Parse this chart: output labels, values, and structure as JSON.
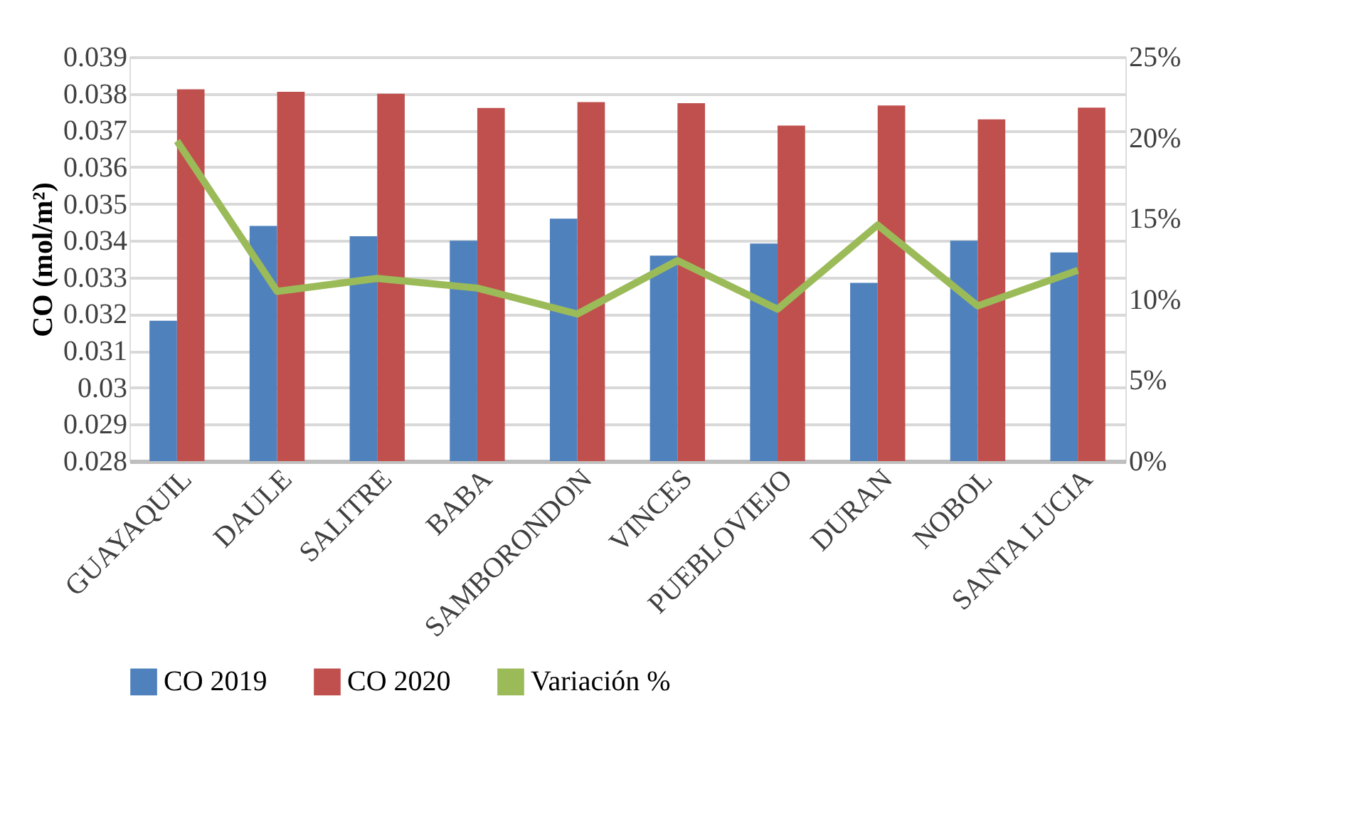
{
  "chart_data": {
    "type": "bar",
    "ylabel": "CO (mol/m²)",
    "categories": [
      "GUAYAQUIL",
      "DAULE",
      "SALITRE",
      "BABA",
      "SAMBORONDON",
      "VINCES",
      "PUEBLOVIEJO",
      "DURAN",
      "NOBOL",
      "SANTA LUCIA"
    ],
    "series": [
      {
        "name": "CO 2019",
        "color": "#4f81bd",
        "values": [
          0.03182,
          0.0344,
          0.03412,
          0.034,
          0.0346,
          0.03359,
          0.03392,
          0.03285,
          0.034,
          0.03368
        ]
      },
      {
        "name": "CO 2020",
        "color": "#c0504d",
        "values": [
          0.03812,
          0.03805,
          0.038,
          0.03761,
          0.03777,
          0.03774,
          0.03713,
          0.03768,
          0.0373,
          0.03762
        ]
      },
      {
        "name": "Variación %",
        "color": "#9bbb59",
        "type": "line",
        "axis": "y2",
        "values": [
          19.8,
          10.5,
          11.3,
          10.7,
          9.1,
          12.4,
          9.4,
          14.6,
          9.6,
          11.8
        ]
      }
    ],
    "ylim": [
      0.028,
      0.039
    ],
    "yticks": [
      0.028,
      0.029,
      0.03,
      0.031,
      0.032,
      0.033,
      0.034,
      0.035,
      0.036,
      0.037,
      0.038,
      0.039
    ],
    "y2lim": [
      0,
      25
    ],
    "y2ticks": [
      {
        "value": 0,
        "label": "0%"
      },
      {
        "value": 5,
        "label": "5%"
      },
      {
        "value": 10,
        "label": "10%"
      },
      {
        "value": 15,
        "label": "15%"
      },
      {
        "value": 20,
        "label": "20%"
      },
      {
        "value": 25,
        "label": "25%"
      }
    ],
    "grid": "y",
    "legend": "bottom",
    "marker": "none",
    "line_style": "solid"
  }
}
